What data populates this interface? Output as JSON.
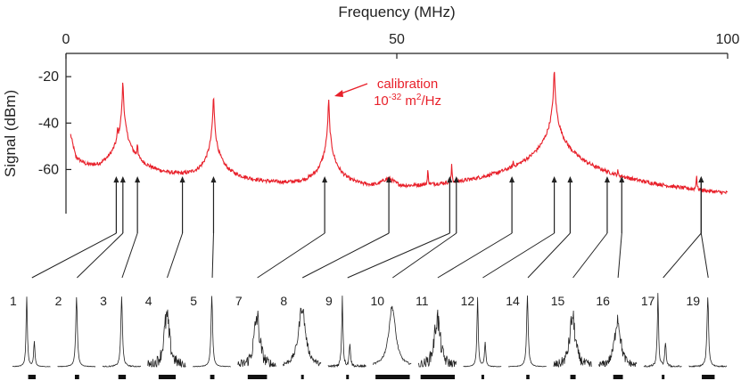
{
  "chart_data": {
    "type": "line",
    "xlabel": "Frequency (MHz)",
    "ylabel": "Signal (dBm)",
    "xlim": [
      0,
      100
    ],
    "ylim": [
      -79,
      -10
    ],
    "x_ticks": [
      0,
      50,
      100
    ],
    "y_ticks": [
      -20,
      -40,
      -60
    ],
    "grid": false,
    "series": [
      {
        "color": "#e8202a",
        "baseline": [
          [
            0.7,
            -45
          ],
          [
            1.5,
            -55
          ],
          [
            3,
            -59
          ],
          [
            5,
            -62
          ],
          [
            8,
            -63.5
          ],
          [
            12,
            -64
          ],
          [
            18,
            -65
          ],
          [
            25,
            -66
          ],
          [
            32,
            -68
          ],
          [
            40,
            -70
          ],
          [
            48,
            -71
          ],
          [
            55,
            -71.5
          ],
          [
            62,
            -72.5
          ],
          [
            72,
            -73.5
          ],
          [
            80,
            -74.5
          ],
          [
            90,
            -75.5
          ],
          [
            100,
            -76.5
          ]
        ],
        "bumps": [
          {
            "x": 48.7,
            "amp": 5.5,
            "w": 1.4
          }
        ],
        "peaks": [
          {
            "x": 7.8,
            "y": -44
          },
          {
            "x": 8.6,
            "y": -22
          },
          {
            "x": 10.8,
            "y": -49
          },
          {
            "x": 22.3,
            "y": -28
          },
          {
            "x": 39.7,
            "y": -30
          },
          {
            "x": 54.7,
            "y": -61
          },
          {
            "x": 58.3,
            "y": -59
          },
          {
            "x": 67.6,
            "y": -60
          },
          {
            "x": 73.8,
            "y": -17
          },
          {
            "x": 81.3,
            "y": -69
          },
          {
            "x": 83.4,
            "y": -65
          },
          {
            "x": 95.3,
            "y": -63
          }
        ]
      }
    ],
    "annotation": {
      "label_line1": "calibration",
      "label_line2_base": "10",
      "label_line2_exp": "-32",
      "label_line2_mid": " m",
      "label_line2_exp2": "2",
      "label_line2_end": "/Hz",
      "target_x": 39.7,
      "color": "#e8202a"
    },
    "markers": [
      {
        "x": 7.6,
        "panel": "1"
      },
      {
        "x": 8.6,
        "panel": "2"
      },
      {
        "x": 10.8,
        "panel": "3"
      },
      {
        "x": 17.6,
        "panel": "4"
      },
      {
        "x": 22.3,
        "panel": "5"
      },
      {
        "x": 39.1,
        "panel": "7"
      },
      {
        "x": 48.8,
        "panel": "8"
      },
      {
        "x": 58.0,
        "panel": "9"
      },
      {
        "x": 59.0,
        "panel": "10"
      },
      {
        "x": 67.4,
        "panel": "11"
      },
      {
        "x": 73.8,
        "panel": "12"
      },
      {
        "x": 76.2,
        "panel": "14"
      },
      {
        "x": 81.8,
        "panel": "15"
      },
      {
        "x": 84.0,
        "panel": "16"
      },
      {
        "x": 96.0,
        "panel": "17"
      },
      {
        "x": 96.0,
        "panel": "19"
      }
    ],
    "panels": [
      {
        "label": "1",
        "style": "double",
        "noise": 0.02,
        "bar": 0.35
      },
      {
        "label": "2",
        "style": "single",
        "noise": 0.02,
        "bar": 0.2
      },
      {
        "label": "3",
        "style": "single",
        "noise": 0.04,
        "bar": 0.35
      },
      {
        "label": "4",
        "style": "noisy",
        "noise": 0.35,
        "bar": 0.8
      },
      {
        "label": "5",
        "style": "single",
        "noise": 0.02,
        "bar": 0.2
      },
      {
        "label": "7",
        "style": "noisy",
        "noise": 0.35,
        "bar": 0.9
      },
      {
        "label": "8",
        "style": "broad",
        "noise": 0.15,
        "bar": 0.05
      },
      {
        "label": "9",
        "style": "double",
        "noise": 0.12,
        "bar": 0.05
      },
      {
        "label": "10",
        "style": "broad",
        "noise": 0.06,
        "bar": 1.6
      },
      {
        "label": "11",
        "style": "noisy",
        "noise": 0.35,
        "bar": 1.6
      },
      {
        "label": "12",
        "style": "double",
        "noise": 0.02,
        "bar": 0.05
      },
      {
        "label": "14",
        "style": "single",
        "noise": 0.02,
        "bar": 0.15
      },
      {
        "label": "15",
        "style": "noisy",
        "noise": 0.3,
        "bar": 0.25
      },
      {
        "label": "16",
        "style": "noisy",
        "noise": 0.25,
        "bar": 0.45
      },
      {
        "label": "17",
        "style": "double",
        "noise": 0.08,
        "bar": 0.1
      },
      {
        "label": "19",
        "style": "single",
        "noise": 0.05,
        "bar": 0.6
      }
    ]
  }
}
